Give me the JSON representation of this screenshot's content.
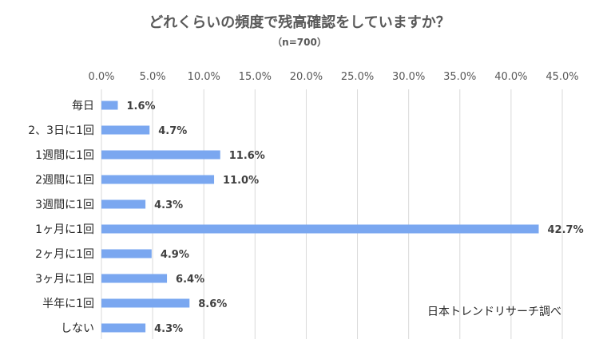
{
  "chart_data": {
    "type": "bar",
    "orientation": "horizontal",
    "title": "どれくらいの頻度で残高確認をしていますか？",
    "subtitle": "（n=700）",
    "categories": [
      "毎日",
      "2、3日に1回",
      "1週間に1回",
      "2週間に1回",
      "3週間に1回",
      "1ヶ月に1回",
      "2ヶ月に1回",
      "3ヶ月に1回",
      "半年に1回",
      "しない"
    ],
    "values": [
      1.6,
      4.7,
      11.6,
      11.0,
      4.3,
      42.7,
      4.9,
      6.4,
      8.6,
      4.3
    ],
    "value_labels": [
      "1.6%",
      "4.7%",
      "11.6%",
      "11.0%",
      "4.3%",
      "42.7%",
      "4.9%",
      "6.4%",
      "8.6%",
      "4.3%"
    ],
    "x_ticks": [
      "0.0%",
      "5.0%",
      "10.0%",
      "15.0%",
      "20.0%",
      "25.0%",
      "30.0%",
      "35.0%",
      "40.0%",
      "45.0%"
    ],
    "xlim": [
      0,
      45
    ],
    "grid": true,
    "axis_position": "top",
    "bar_color": "#7aa7f0",
    "source": "日本トレンドリサーチ調べ"
  }
}
